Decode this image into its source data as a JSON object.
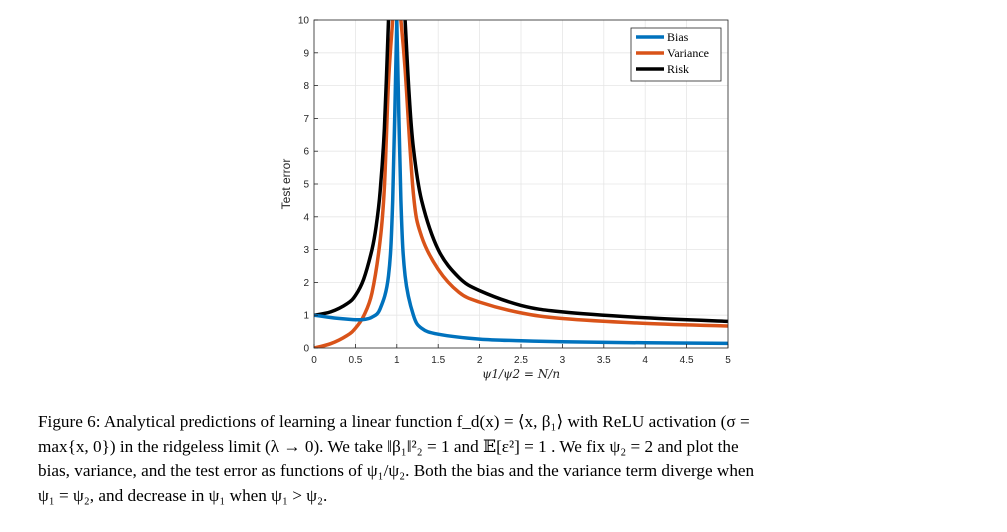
{
  "chart_data": {
    "type": "line",
    "xlabel": "ψ1/ψ2 = N/n",
    "ylabel": "Test error",
    "xlim": [
      0,
      5
    ],
    "ylim": [
      0,
      10
    ],
    "xticks": [
      "0",
      "0.5",
      "1",
      "1.5",
      "2",
      "2.5",
      "3",
      "3.5",
      "4",
      "4.5",
      "5"
    ],
    "yticks": [
      "0",
      "1",
      "2",
      "3",
      "4",
      "5",
      "6",
      "7",
      "8",
      "9",
      "10"
    ],
    "grid": true,
    "legend_position": "top-right",
    "series": [
      {
        "name": "Bias",
        "color": "#0072BD",
        "x": [
          0,
          0.2,
          0.4,
          0.5,
          0.6,
          0.7,
          0.8,
          0.9,
          0.95,
          1.0,
          1.05,
          1.1,
          1.2,
          1.3,
          1.5,
          2.0,
          2.5,
          3.0,
          4.0,
          5.0
        ],
        "y": [
          1.0,
          0.93,
          0.88,
          0.86,
          0.87,
          0.94,
          1.2,
          2.2,
          4.5,
          10,
          4.5,
          2.2,
          1.0,
          0.6,
          0.42,
          0.27,
          0.22,
          0.19,
          0.16,
          0.14
        ]
      },
      {
        "name": "Variance",
        "color": "#D95319",
        "x": [
          0,
          0.2,
          0.4,
          0.5,
          0.6,
          0.7,
          0.8,
          0.85,
          0.9,
          0.95,
          1.05,
          1.1,
          1.2,
          1.3,
          1.5,
          1.75,
          2.0,
          2.5,
          3.0,
          4.0,
          5.0
        ],
        "y": [
          0.0,
          0.13,
          0.38,
          0.6,
          0.98,
          1.68,
          3.3,
          4.9,
          8.1,
          10,
          10,
          8.5,
          4.7,
          3.4,
          2.4,
          1.7,
          1.4,
          1.07,
          0.9,
          0.75,
          0.67
        ]
      },
      {
        "name": "Risk",
        "color": "#000000",
        "x": [
          0,
          0.2,
          0.4,
          0.5,
          0.6,
          0.7,
          0.75,
          0.8,
          0.85,
          0.9,
          1.1,
          1.15,
          1.2,
          1.3,
          1.5,
          1.75,
          2.0,
          2.5,
          3.0,
          4.0,
          5.0
        ],
        "y": [
          1.0,
          1.1,
          1.35,
          1.6,
          2.1,
          3.0,
          3.7,
          4.8,
          6.7,
          10,
          10,
          7.7,
          6.1,
          4.5,
          3.0,
          2.15,
          1.75,
          1.3,
          1.1,
          0.92,
          0.81
        ]
      }
    ]
  },
  "caption": {
    "line1": "Figure 6: Analytical predictions of learning a linear function f_d(x) = ⟨x, β₁⟩ with ReLU activation (σ =",
    "line2": "max{x, 0}) in the ridgeless limit (λ → 0). We take ‖β₁‖²₂ = 1 and 𝔼[ε²] = 1 . We fix ψ₂ = 2 and plot the",
    "line3": "bias, variance, and the test error as functions of ψ₁/ψ₂. Both the bias and the variance term diverge when",
    "line4": "ψ₁ = ψ₂, and decrease in ψ₁ when ψ₁ > ψ₂."
  }
}
